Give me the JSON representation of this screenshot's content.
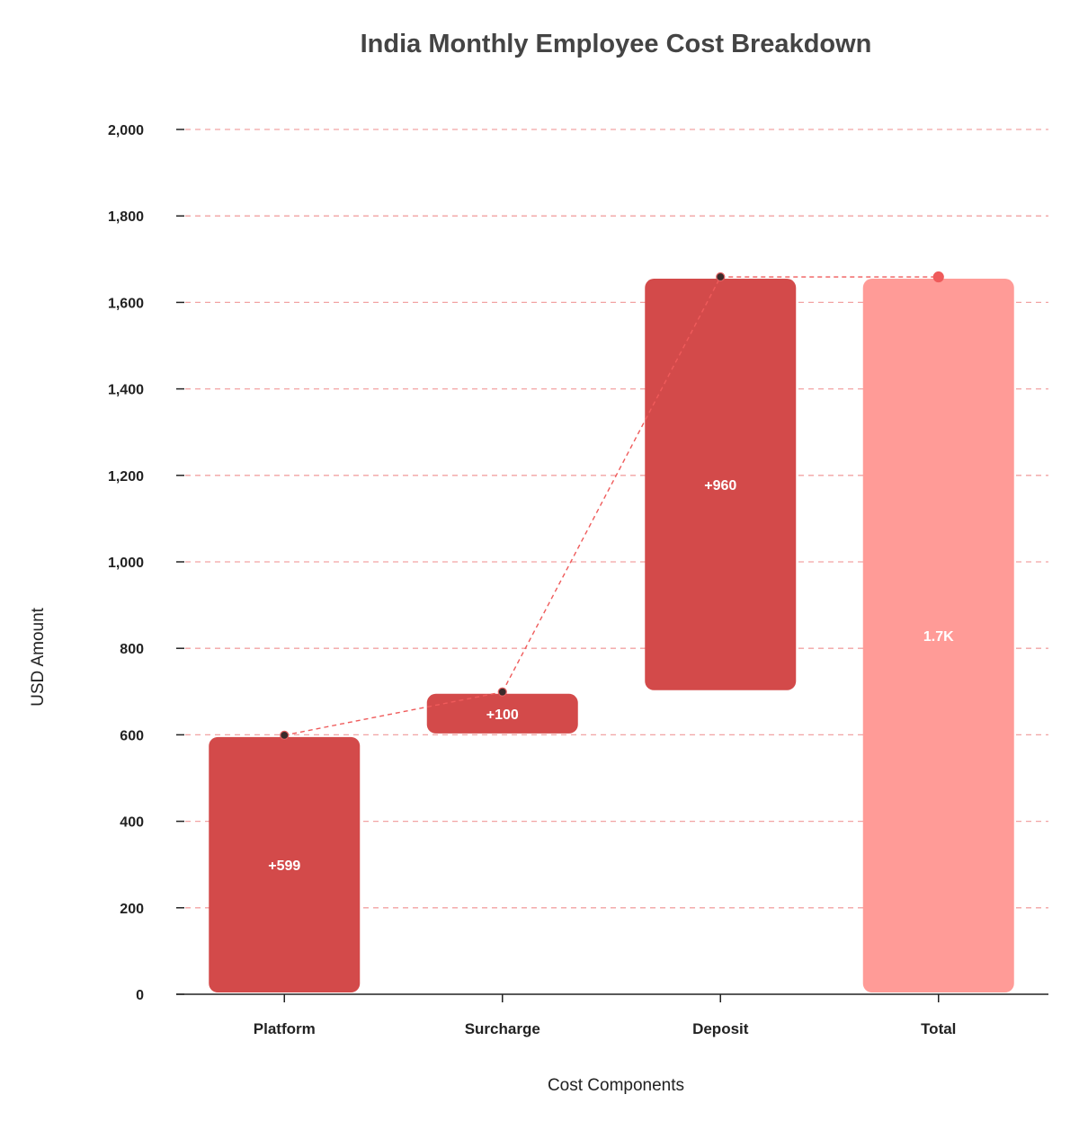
{
  "chart_data": {
    "type": "waterfall",
    "title": "India Monthly Employee Cost Breakdown",
    "xlabel": "Cost Components",
    "ylabel": "USD Amount",
    "ylim": [
      0,
      2000
    ],
    "yticks": [
      0,
      200,
      400,
      600,
      800,
      1000,
      1200,
      1400,
      1600,
      1800,
      2000
    ],
    "ytick_labels": [
      "0",
      "200",
      "400",
      "600",
      "800",
      "1,000",
      "1,200",
      "1,400",
      "1,600",
      "1,800",
      "2,000"
    ],
    "grid": true,
    "categories": [
      "Platform",
      "Surcharge",
      "Deposit",
      "Total"
    ],
    "values": [
      599,
      100,
      960,
      1659
    ],
    "is_total": [
      false,
      false,
      false,
      true
    ],
    "data_labels": [
      "+599",
      "+100",
      "+960",
      "1.7K"
    ],
    "colors": {
      "increase": "#d34a4a",
      "total": "#ff9b97",
      "connector": "#ef5b5b",
      "grid": "#f2a3a3",
      "axis": "#222222"
    }
  }
}
